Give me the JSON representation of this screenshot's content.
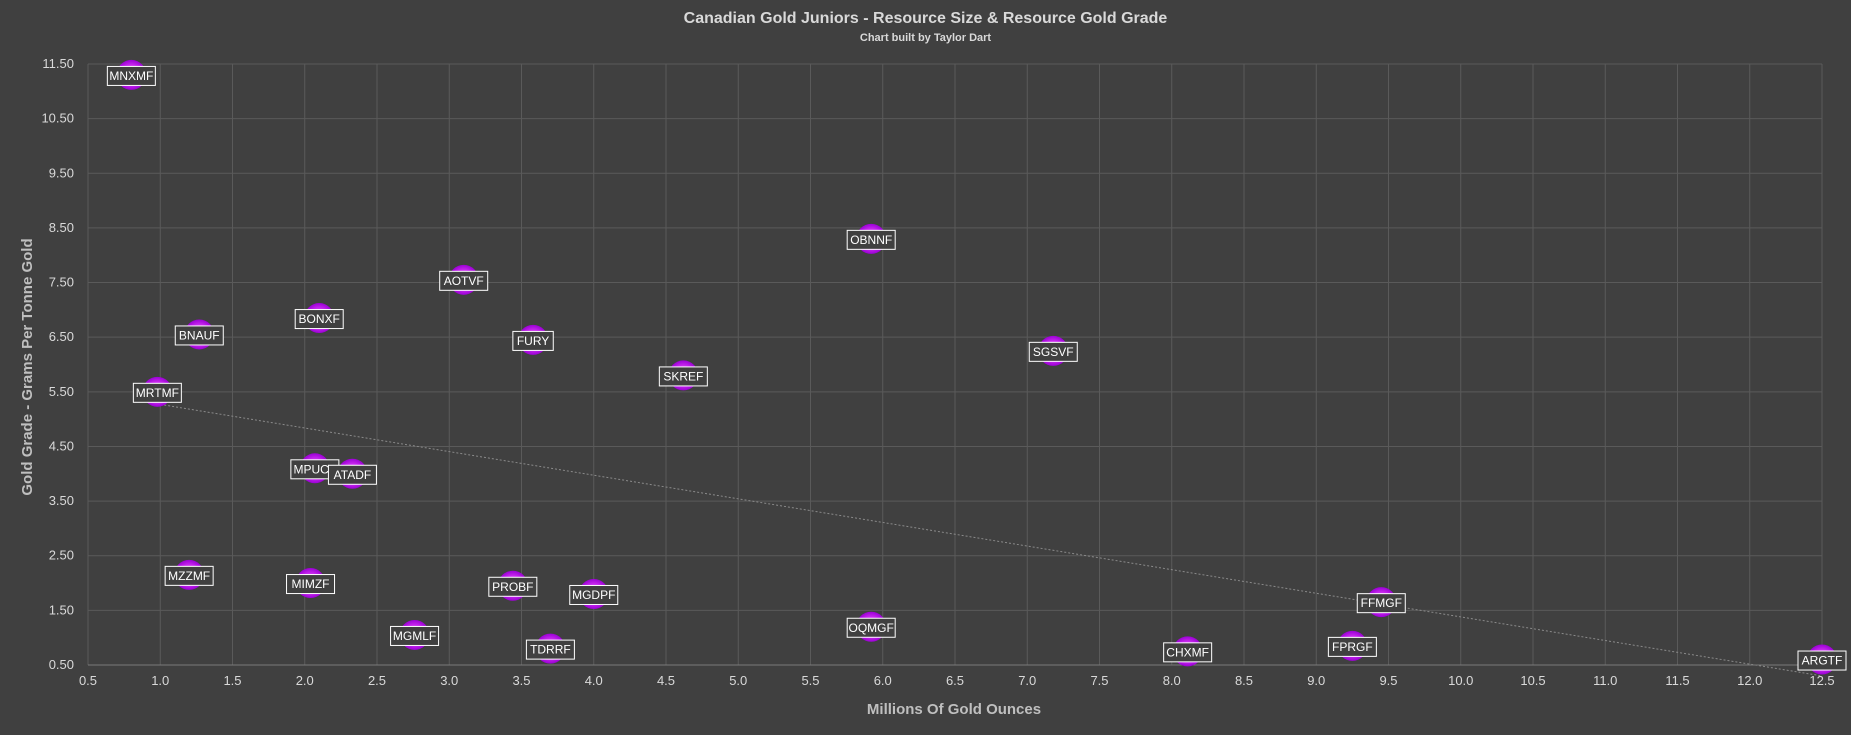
{
  "title": "Canadian Gold Juniors - Resource Size & Resource Gold Grade",
  "subtitle": "Chart built by Taylor Dart",
  "chart_data": {
    "type": "scatter",
    "title": "Canadian Gold Juniors - Resource Size & Resource Gold Grade",
    "subtitle": "Chart built by Taylor Dart",
    "xlabel": "Millions Of Gold Ounces",
    "ylabel": "Gold Grade - Grams Per Tonne Gold",
    "xlim": [
      0.5,
      12.5
    ],
    "ylim": [
      0.5,
      11.5
    ],
    "x_ticks": [
      "0.5",
      "1.0",
      "1.5",
      "2.0",
      "2.5",
      "3.0",
      "3.5",
      "4.0",
      "4.5",
      "5.0",
      "5.5",
      "6.0",
      "6.5",
      "7.0",
      "7.5",
      "8.0",
      "8.5",
      "9.0",
      "9.5",
      "10.0",
      "10.5",
      "11.0",
      "11.5",
      "12.0",
      "12.5"
    ],
    "y_ticks": [
      "0.50",
      "1.50",
      "2.50",
      "3.50",
      "4.50",
      "5.50",
      "6.50",
      "7.50",
      "8.50",
      "9.50",
      "10.50",
      "11.50"
    ],
    "grid": true,
    "marker_color": "#cc00ff",
    "background": "#404040",
    "trendline": {
      "x": [
        1.0,
        12.5
      ],
      "y": [
        5.27,
        0.3
      ]
    },
    "points": [
      {
        "label": "MNXMF",
        "x": 0.8,
        "y": 11.3
      },
      {
        "label": "BNAUF",
        "x": 1.27,
        "y": 6.55
      },
      {
        "label": "MRTMF",
        "x": 0.98,
        "y": 5.5
      },
      {
        "label": "MZZMF",
        "x": 1.2,
        "y": 2.15
      },
      {
        "label": "BONXF",
        "x": 2.1,
        "y": 6.85
      },
      {
        "label": "MPUCF",
        "x": 2.07,
        "y": 4.1
      },
      {
        "label": "ATADF",
        "x": 2.33,
        "y": 4.0
      },
      {
        "label": "MIMZF",
        "x": 2.04,
        "y": 2.0
      },
      {
        "label": "MGMLF",
        "x": 2.76,
        "y": 1.05
      },
      {
        "label": "AOTVF",
        "x": 3.1,
        "y": 7.55
      },
      {
        "label": "FURY",
        "x": 3.58,
        "y": 6.45
      },
      {
        "label": "PROBF",
        "x": 3.44,
        "y": 1.95
      },
      {
        "label": "TDRRF",
        "x": 3.7,
        "y": 0.8
      },
      {
        "label": "MGDPF",
        "x": 4.0,
        "y": 1.8
      },
      {
        "label": "SKREF",
        "x": 4.62,
        "y": 5.8
      },
      {
        "label": "OBNNF",
        "x": 5.92,
        "y": 8.3
      },
      {
        "label": "OQMGF",
        "x": 5.92,
        "y": 1.2
      },
      {
        "label": "SGSVF",
        "x": 7.18,
        "y": 6.25
      },
      {
        "label": "CHXMF",
        "x": 8.11,
        "y": 0.75
      },
      {
        "label": "FPRGF",
        "x": 9.25,
        "y": 0.85
      },
      {
        "label": "FFMGF",
        "x": 9.45,
        "y": 1.65
      },
      {
        "label": "ARGTF",
        "x": 12.5,
        "y": 0.6
      }
    ]
  }
}
